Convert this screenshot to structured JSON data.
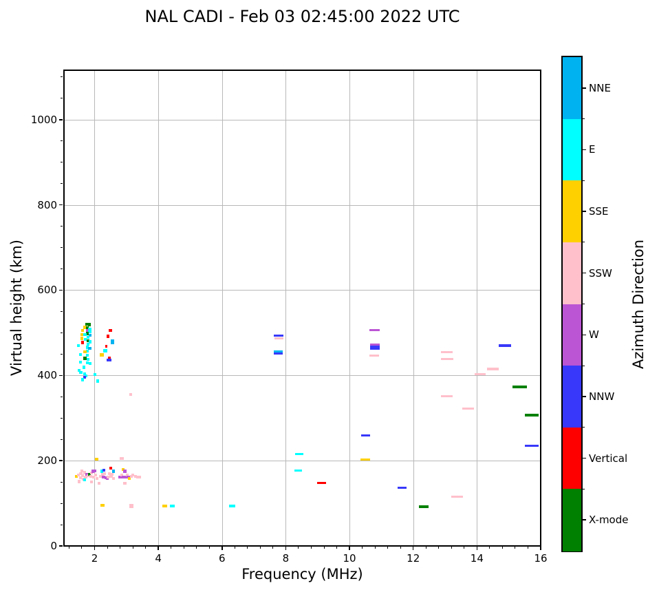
{
  "title": "NAL CADI - Feb 03 02:45:00 2022 UTC",
  "colorbar": {
    "label": "Azimuth Direction",
    "entries": [
      {
        "label": "NNE",
        "color": "#00b3f0"
      },
      {
        "label": "E",
        "color": "#00ffff"
      },
      {
        "label": "SSE",
        "color": "#ffd000"
      },
      {
        "label": "SSW",
        "color": "#ffc0cb"
      },
      {
        "label": "W",
        "color": "#bb55d4"
      },
      {
        "label": "NNW",
        "color": "#3838fa"
      },
      {
        "label": "Vertical",
        "color": "#ff0000"
      },
      {
        "label": "X-mode",
        "color": "#008000"
      }
    ]
  },
  "chart_data": {
    "type": "scatter",
    "title": "NAL CADI - Feb 03 02:45:00 2022 UTC",
    "xlabel": "Frequency (MHz)",
    "ylabel": "Virtual height (km)",
    "xlim": [
      1.04,
      16
    ],
    "ylim": [
      0,
      1116
    ],
    "x_ticks": [
      2,
      4,
      6,
      8,
      10,
      12,
      14,
      16
    ],
    "y_ticks": [
      0,
      200,
      400,
      600,
      800,
      1000
    ],
    "x_minor_step": 0.4,
    "y_minor_step": 50,
    "grid": true,
    "legend": {
      "position": "right-colorbar",
      "label": "Azimuth Direction",
      "entries_top_to_bottom": [
        "NNE",
        "E",
        "SSE",
        "SSW",
        "W",
        "NNW",
        "Vertical",
        "X-mode"
      ]
    },
    "colors": {
      "NNE": "#00b3f0",
      "E": "#00ffff",
      "SSE": "#ffd000",
      "SSW": "#ffc0cb",
      "W": "#bb55d4",
      "NNW": "#3838fa",
      "Vertical": "#ff0000",
      "X-mode": "#008000"
    },
    "point_format": [
      "freq_mhz",
      "height_km",
      "direction",
      "width_mhz(optional,default 0.09)",
      "height_extent_km(optional,default 7)"
    ],
    "points": [
      [
        1.76,
        520,
        "X-mode"
      ],
      [
        1.84,
        519,
        "X-mode"
      ],
      [
        1.7,
        513,
        "SSE"
      ],
      [
        1.78,
        511,
        "X-mode"
      ],
      [
        1.85,
        509,
        "E"
      ],
      [
        1.63,
        505,
        "SSE"
      ],
      [
        1.77,
        505,
        "W"
      ],
      [
        1.85,
        503,
        "E"
      ],
      [
        1.78,
        498,
        "X-mode"
      ],
      [
        1.6,
        496,
        "SSE"
      ],
      [
        1.7,
        496,
        "E"
      ],
      [
        1.86,
        494,
        "NNE"
      ],
      [
        1.79,
        489,
        "E"
      ],
      [
        1.6,
        487,
        "SSE"
      ],
      [
        1.71,
        485,
        "E"
      ],
      [
        1.79,
        481,
        "X-mode"
      ],
      [
        1.86,
        479,
        "E"
      ],
      [
        1.63,
        477,
        "Vertical"
      ],
      [
        1.79,
        473,
        "E"
      ],
      [
        1.5,
        470,
        "E"
      ],
      [
        1.77,
        466,
        "E"
      ],
      [
        1.85,
        463,
        "NNE"
      ],
      [
        1.78,
        457,
        "E"
      ],
      [
        1.7,
        455,
        "SSE"
      ],
      [
        1.55,
        449,
        "E"
      ],
      [
        1.78,
        447,
        "E"
      ],
      [
        1.7,
        440,
        "X-mode"
      ],
      [
        1.8,
        438,
        "E"
      ],
      [
        1.55,
        431,
        "E"
      ],
      [
        1.78,
        430,
        "E"
      ],
      [
        1.86,
        428,
        "E"
      ],
      [
        1.66,
        419,
        "E"
      ],
      [
        1.52,
        412,
        "E"
      ],
      [
        1.57,
        407,
        "E"
      ],
      [
        1.68,
        404,
        "E"
      ],
      [
        1.74,
        399,
        "E"
      ],
      [
        1.68,
        396,
        "NNW"
      ],
      [
        1.62,
        390,
        "E"
      ],
      [
        2.02,
        402,
        "E"
      ],
      [
        2.1,
        387,
        "E"
      ],
      [
        2.5,
        506,
        "Vertical",
        0.1
      ],
      [
        2.42,
        492,
        "Vertical",
        0.1
      ],
      [
        2.56,
        479,
        "NNE",
        0.12,
        10
      ],
      [
        2.37,
        468,
        "Vertical",
        0.07
      ],
      [
        2.34,
        458,
        "E",
        0.14
      ],
      [
        2.23,
        448,
        "SSE",
        0.12
      ],
      [
        2.46,
        441,
        "Vertical",
        0.08
      ],
      [
        2.45,
        436,
        "NNW",
        0.14
      ],
      [
        3.13,
        355,
        "SSW",
        0.1
      ],
      [
        1.42,
        163,
        "SSE"
      ],
      [
        1.5,
        166,
        "SSW"
      ],
      [
        1.55,
        160,
        "SSW"
      ],
      [
        1.57,
        170,
        "SSW"
      ],
      [
        1.62,
        165,
        "SSW"
      ],
      [
        1.65,
        157,
        "SSW"
      ],
      [
        1.68,
        172,
        "SSW"
      ],
      [
        1.72,
        162,
        "SSW"
      ],
      [
        1.76,
        168,
        "W"
      ],
      [
        1.8,
        165,
        "SSW"
      ],
      [
        1.84,
        168,
        "X-mode"
      ],
      [
        1.88,
        163,
        "SSW"
      ],
      [
        1.9,
        171,
        "SSW"
      ],
      [
        1.94,
        175,
        "W"
      ],
      [
        2.0,
        176,
        "W"
      ],
      [
        1.97,
        162,
        "SSW"
      ],
      [
        2.03,
        166,
        "SSW"
      ],
      [
        2.07,
        158,
        "SSW"
      ],
      [
        1.52,
        151,
        "SSW"
      ],
      [
        1.69,
        155,
        "E"
      ],
      [
        1.9,
        150,
        "SSW"
      ],
      [
        1.6,
        176,
        "SSW"
      ],
      [
        2.15,
        147,
        "SSW"
      ],
      [
        2.18,
        163,
        "SSW"
      ],
      [
        2.22,
        175,
        "E"
      ],
      [
        2.25,
        168,
        "SSW"
      ],
      [
        2.28,
        161,
        "W"
      ],
      [
        2.3,
        178,
        "NNW"
      ],
      [
        2.32,
        170,
        "SSW"
      ],
      [
        2.35,
        160,
        "W"
      ],
      [
        2.4,
        158,
        "W"
      ],
      [
        2.42,
        162,
        "SSW"
      ],
      [
        2.46,
        170,
        "SSW"
      ],
      [
        2.5,
        182,
        "Vertical"
      ],
      [
        2.52,
        163,
        "SSW"
      ],
      [
        2.56,
        168,
        "SSW"
      ],
      [
        2.6,
        175,
        "NNE"
      ],
      [
        2.6,
        158,
        "SSW"
      ],
      [
        2.78,
        162,
        "W"
      ],
      [
        2.82,
        161,
        "W"
      ],
      [
        2.86,
        166,
        "SSW"
      ],
      [
        2.9,
        161,
        "W"
      ],
      [
        2.9,
        179,
        "SSE"
      ],
      [
        2.95,
        175,
        "W"
      ],
      [
        2.95,
        147,
        "SSW"
      ],
      [
        2.98,
        161,
        "W"
      ],
      [
        3.02,
        166,
        "SSW"
      ],
      [
        3.06,
        161,
        "W"
      ],
      [
        3.1,
        158,
        "SSE"
      ],
      [
        3.15,
        163,
        "SSW"
      ],
      [
        3.2,
        166,
        "SSW"
      ],
      [
        3.28,
        163,
        "SSW"
      ],
      [
        3.35,
        161,
        "SSW"
      ],
      [
        3.42,
        162,
        "SSW"
      ],
      [
        2.07,
        204,
        "SSE",
        0.1
      ],
      [
        2.85,
        205,
        "SSW",
        0.14
      ],
      [
        2.25,
        95,
        "SSE",
        0.13
      ],
      [
        3.15,
        94,
        "SSW",
        0.12,
        9
      ],
      [
        4.2,
        94,
        "SSE",
        0.14
      ],
      [
        4.43,
        94,
        "E",
        0.15
      ],
      [
        6.32,
        94,
        "E",
        0.2
      ],
      [
        7.78,
        494,
        "NNW",
        0.3,
        5
      ],
      [
        7.78,
        487,
        "SSW",
        0.28,
        5
      ],
      [
        7.76,
        456,
        "NNE",
        0.28,
        5
      ],
      [
        7.76,
        451,
        "NNW",
        0.28,
        5
      ],
      [
        10.78,
        507,
        "W",
        0.33,
        5
      ],
      [
        10.8,
        472,
        "W",
        0.3,
        5
      ],
      [
        10.8,
        465,
        "NNW",
        0.3,
        9
      ],
      [
        10.78,
        446,
        "SSW",
        0.3,
        5
      ],
      [
        10.5,
        259,
        "NNW",
        0.28,
        5
      ],
      [
        10.5,
        203,
        "SSE",
        0.3,
        5
      ],
      [
        8.43,
        216,
        "E",
        0.26,
        5
      ],
      [
        8.4,
        177,
        "E",
        0.24,
        5
      ],
      [
        9.13,
        148,
        "Vertical",
        0.28,
        5
      ],
      [
        11.66,
        136,
        "NNW",
        0.28,
        5
      ],
      [
        12.33,
        92,
        "X-mode",
        0.32,
        6
      ],
      [
        13.38,
        116,
        "SSW",
        0.36,
        5
      ],
      [
        13.05,
        455,
        "SSW",
        0.37,
        5
      ],
      [
        13.06,
        438,
        "SSW",
        0.38,
        5
      ],
      [
        13.05,
        352,
        "SSW",
        0.36,
        5
      ],
      [
        13.72,
        322,
        "SSW",
        0.37,
        5
      ],
      [
        14.1,
        403,
        "SSW",
        0.36,
        5
      ],
      [
        14.5,
        415,
        "SSW",
        0.38,
        5
      ],
      [
        14.88,
        470,
        "NNW",
        0.4,
        5
      ],
      [
        15.35,
        373,
        "X-mode",
        0.45,
        5
      ],
      [
        15.72,
        307,
        "X-mode",
        0.45,
        6
      ],
      [
        15.72,
        235,
        "NNW",
        0.45,
        6
      ]
    ]
  }
}
